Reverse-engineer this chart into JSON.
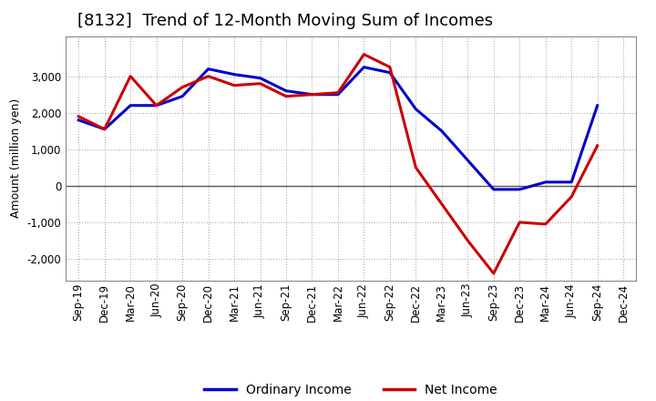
{
  "title": "[8132]  Trend of 12-Month Moving Sum of Incomes",
  "ylabel": "Amount (million yen)",
  "background_color": "#ffffff",
  "grid_color": "#999999",
  "x_labels": [
    "Sep-19",
    "Dec-19",
    "Mar-20",
    "Jun-20",
    "Sep-20",
    "Dec-20",
    "Mar-21",
    "Jun-21",
    "Sep-21",
    "Dec-21",
    "Mar-22",
    "Jun-22",
    "Sep-22",
    "Dec-22",
    "Mar-23",
    "Jun-23",
    "Sep-23",
    "Dec-23",
    "Mar-24",
    "Jun-24",
    "Sep-24",
    "Dec-24"
  ],
  "ordinary_income": [
    1800,
    1550,
    2200,
    2200,
    2450,
    3200,
    3050,
    2950,
    2600,
    2500,
    2500,
    3250,
    3100,
    2100,
    1500,
    700,
    -100,
    -100,
    100,
    100,
    2200,
    null
  ],
  "net_income": [
    1900,
    1550,
    3000,
    2200,
    2700,
    3000,
    2750,
    2800,
    2450,
    2500,
    2550,
    3600,
    3250,
    500,
    -500,
    -1500,
    -2400,
    -1000,
    -1050,
    -300,
    1100,
    null
  ],
  "ordinary_income_color": "#0000cc",
  "net_income_color": "#cc0000",
  "line_width": 2.2,
  "ylim": [
    -2600,
    4100
  ],
  "yticks": [
    -2000,
    -1000,
    0,
    1000,
    2000,
    3000
  ],
  "title_fontsize": 13,
  "legend_fontsize": 10,
  "axis_label_fontsize": 9,
  "tick_fontsize": 8.5
}
